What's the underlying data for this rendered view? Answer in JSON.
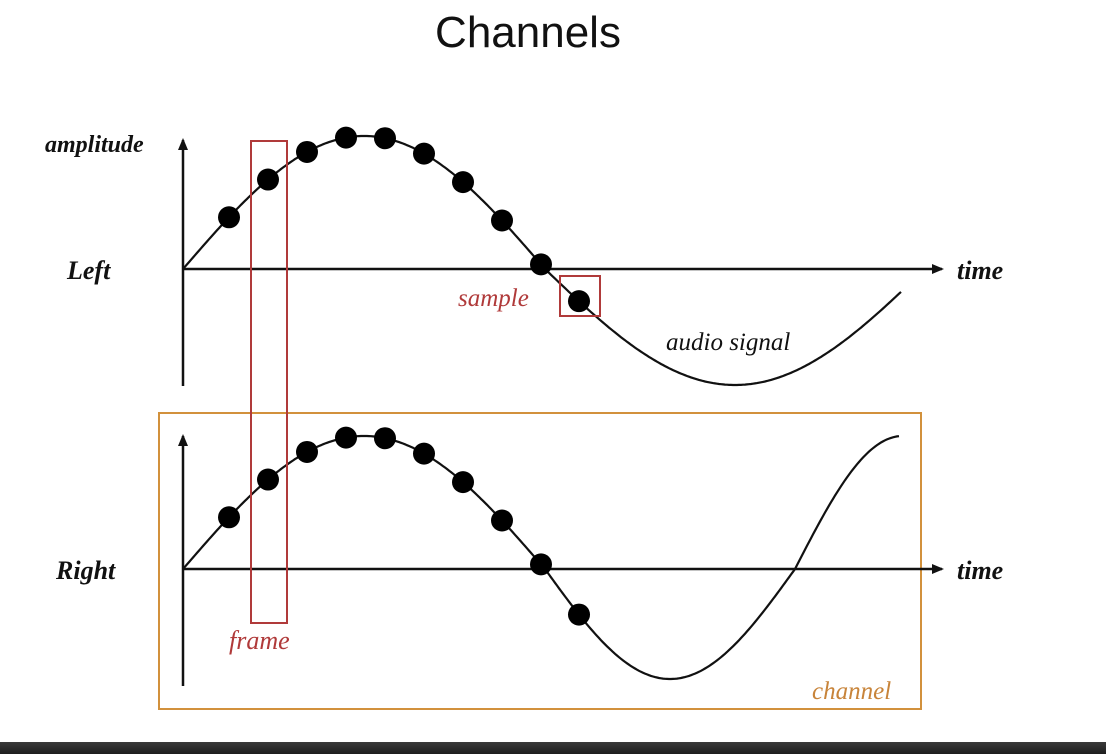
{
  "title": "Channels",
  "labels": {
    "amplitude": "amplitude",
    "left": "Left",
    "right": "Right",
    "time_top": "time",
    "time_bottom": "time",
    "sample": "sample",
    "audio_signal": "audio signal",
    "frame": "frame",
    "channel": "channel"
  },
  "colors": {
    "text": "#111111",
    "frame_box": "#b03a3a",
    "sample_box": "#b03a3a",
    "channel_box": "#d2913c",
    "channel_text": "#c8843a",
    "samples": "#000000"
  }
}
